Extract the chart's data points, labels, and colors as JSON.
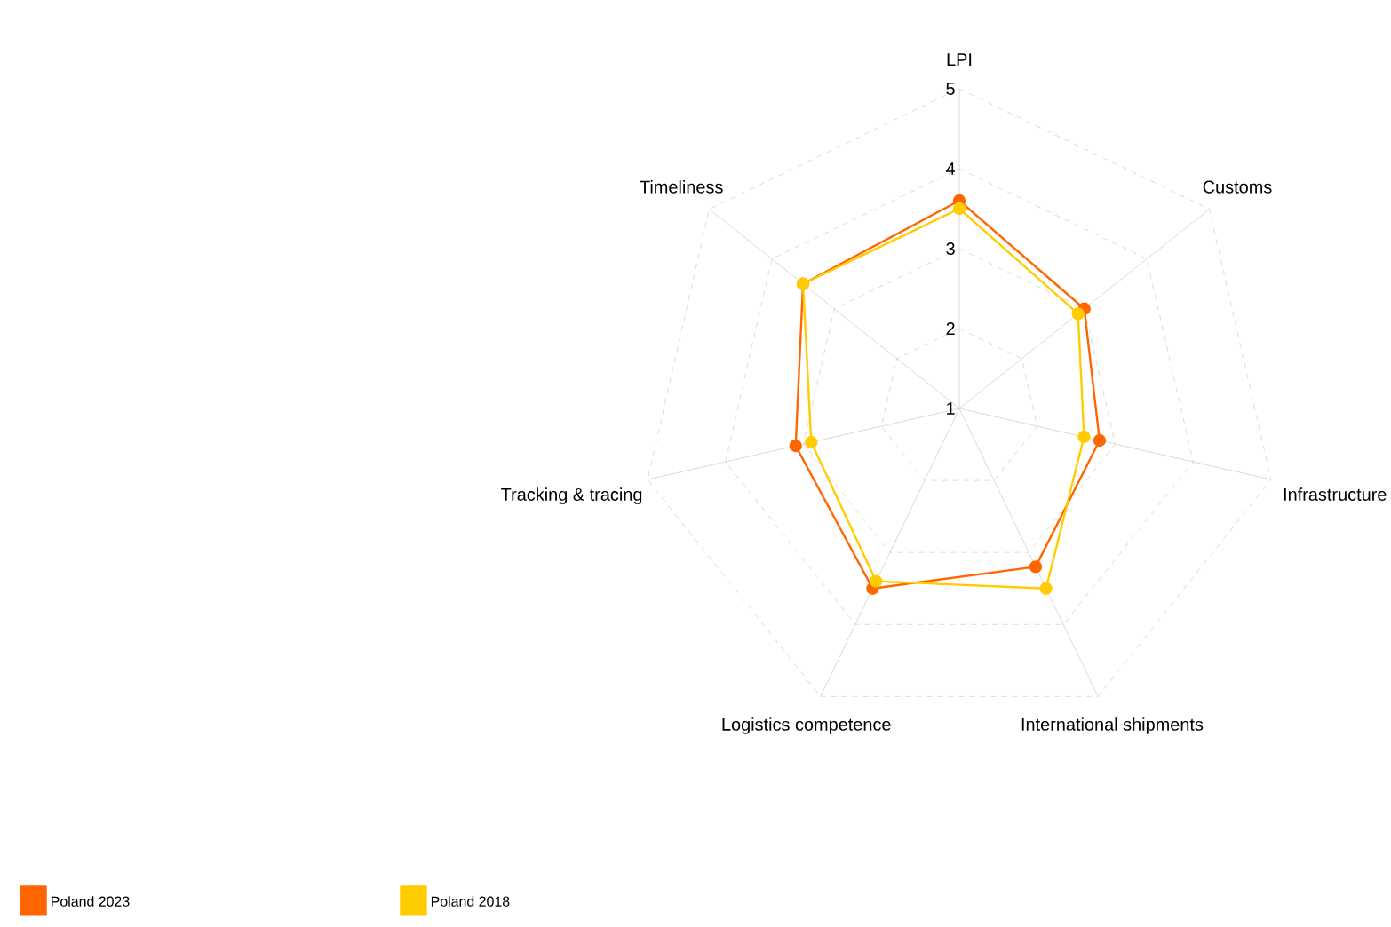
{
  "chart_data": {
    "type": "radar",
    "categories": [
      "LPI",
      "Customs",
      "Infrastructure",
      "International shipments",
      "Logistics competence",
      "Tracking & tracing",
      "Timeliness"
    ],
    "series": [
      {
        "name": "Poland 2023",
        "color": "#ff6600",
        "values": [
          3.6,
          3.0,
          2.8,
          3.2,
          3.5,
          3.1,
          3.5
        ]
      },
      {
        "name": "Poland 2018",
        "color": "#ffcc00",
        "values": [
          3.5,
          2.9,
          2.6,
          3.5,
          3.4,
          2.9,
          3.5
        ]
      }
    ],
    "ylim": [
      1,
      5
    ],
    "yticks": [
      1,
      2,
      3,
      4,
      5
    ],
    "grid": true,
    "legend": "bottom left",
    "marker": "circle",
    "line_style": "solid"
  }
}
